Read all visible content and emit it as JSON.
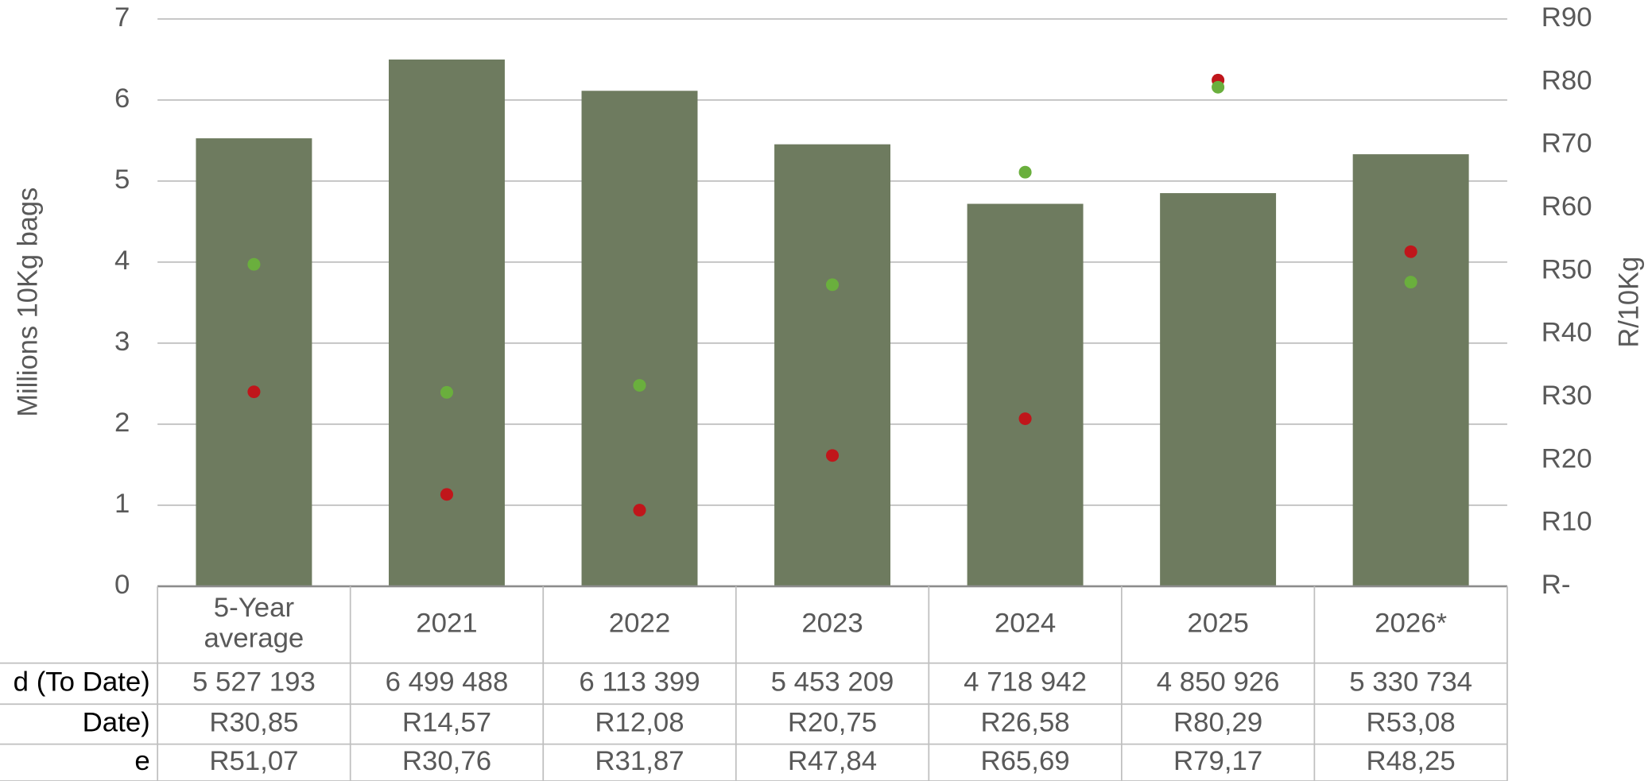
{
  "chart_data": {
    "type": "bar",
    "y_label": "Millions 10Kg bags",
    "y2_label": "R/10Kg",
    "categories": [
      "5-Year average",
      "2021",
      "2022",
      "2023",
      "2024",
      "2025",
      "2026*"
    ],
    "series": [
      {
        "name": "d (To Date)",
        "type": "bar",
        "color": "#6e7b5f",
        "values": [
          5.527193,
          6.499488,
          6.113399,
          5.453209,
          4.718942,
          4.850926,
          5.330734
        ],
        "value_labels": [
          "5 527 193",
          "6 499 488",
          "6 113 399",
          "5 453 209",
          "4 718 942",
          "4 850 926",
          "5 330 734"
        ]
      },
      {
        "name": "Date)",
        "type": "scatter",
        "axis": "y2",
        "color": "#c0161b",
        "values": [
          30.85,
          14.57,
          12.08,
          20.75,
          26.58,
          80.29,
          53.08
        ],
        "value_labels": [
          "R30,85",
          "R14,57",
          "R12,08",
          "R20,75",
          "R26,58",
          "R80,29",
          "R53,08"
        ]
      },
      {
        "name": "e",
        "type": "scatter",
        "axis": "y2",
        "color": "#6aaf3d",
        "values": [
          51.07,
          30.76,
          31.87,
          47.84,
          65.69,
          79.17,
          48.25
        ],
        "value_labels": [
          "R51,07",
          "R30,76",
          "R31,87",
          "R47,84",
          "R65,69",
          "R79,17",
          "R48,25"
        ]
      }
    ],
    "ylim": [
      0,
      7
    ],
    "yticks": [
      0,
      1,
      2,
      3,
      4,
      5,
      6,
      7
    ],
    "y2lim": [
      0,
      90
    ],
    "y2ticks": [
      {
        "value": 0,
        "label": "R-"
      },
      {
        "value": 10,
        "label": "R10"
      },
      {
        "value": 20,
        "label": "R20"
      },
      {
        "value": 30,
        "label": "R30"
      },
      {
        "value": 40,
        "label": "R40"
      },
      {
        "value": 50,
        "label": "R50"
      },
      {
        "value": 60,
        "label": "R60"
      },
      {
        "value": 70,
        "label": "R70"
      },
      {
        "value": 80,
        "label": "R80"
      },
      {
        "value": 90,
        "label": "R90"
      }
    ],
    "grid": true,
    "data_table": true
  }
}
